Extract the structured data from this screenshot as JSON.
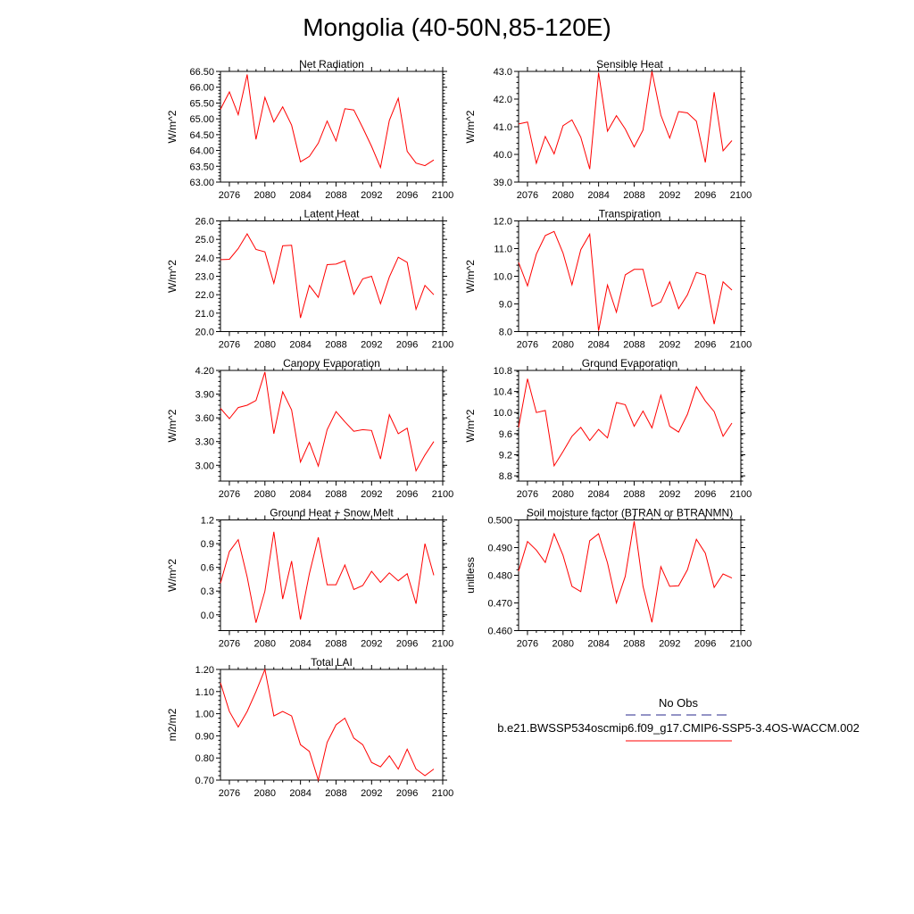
{
  "title": "Mongolia (40-50N,85-120E)",
  "colors": {
    "series": "#ff0000",
    "obs": "#2a2a8c",
    "axis": "#000000"
  },
  "legend": {
    "obs_label": "No Obs",
    "run_label": "b.e21.BWSSP534oscmip6.f09_g17.CMIP6-SSP5-3.4OS-WACCM.002"
  },
  "chart_data": [
    {
      "type": "line",
      "title": "Net Radiation",
      "ylabel": "W/m^2",
      "xlim": [
        2076,
        2100
      ],
      "xticks": [
        2076,
        2080,
        2084,
        2088,
        2092,
        2096,
        2100
      ],
      "ylim": [
        63.0,
        66.5
      ],
      "yticks": [
        "63.00",
        "63.50",
        "64.00",
        "64.50",
        "65.00",
        "65.50",
        "66.00",
        "66.50"
      ],
      "x": [
        2075,
        2076,
        2077,
        2078,
        2079,
        2080,
        2081,
        2082,
        2083,
        2084,
        2085,
        2086,
        2087,
        2088,
        2089,
        2090,
        2091,
        2092,
        2093,
        2094,
        2095,
        2096,
        2097,
        2098,
        2099
      ],
      "values": [
        65.3,
        65.85,
        65.13,
        66.4,
        64.35,
        65.68,
        64.9,
        65.38,
        64.8,
        63.64,
        63.81,
        64.23,
        64.93,
        64.3,
        65.32,
        65.28,
        64.72,
        64.13,
        63.46,
        64.95,
        65.65,
        63.97,
        63.6,
        63.52,
        63.7
      ]
    },
    {
      "type": "line",
      "title": "Sensible Heat",
      "ylabel": "W/m^2",
      "xlim": [
        2076,
        2100
      ],
      "xticks": [
        2076,
        2080,
        2084,
        2088,
        2092,
        2096,
        2100
      ],
      "ylim": [
        39.0,
        43.0
      ],
      "yticks": [
        "39.0",
        "40.0",
        "41.0",
        "42.0",
        "43.0"
      ],
      "x": [
        2075,
        2076,
        2077,
        2078,
        2079,
        2080,
        2081,
        2082,
        2083,
        2084,
        2085,
        2086,
        2087,
        2088,
        2089,
        2090,
        2091,
        2092,
        2093,
        2094,
        2095,
        2096,
        2097,
        2098,
        2099
      ],
      "values": [
        41.1,
        41.17,
        39.68,
        40.65,
        40.02,
        41.04,
        41.25,
        40.62,
        39.47,
        42.95,
        40.84,
        41.4,
        40.92,
        40.27,
        40.88,
        43.0,
        41.42,
        40.59,
        41.55,
        41.5,
        41.2,
        39.71,
        42.25,
        40.13,
        40.5
      ]
    },
    {
      "type": "line",
      "title": "Latent Heat",
      "ylabel": "W/m^2",
      "xlim": [
        2076,
        2100
      ],
      "xticks": [
        2076,
        2080,
        2084,
        2088,
        2092,
        2096,
        2100
      ],
      "ylim": [
        20.0,
        26.0
      ],
      "yticks": [
        "20.0",
        "21.0",
        "22.0",
        "23.0",
        "24.0",
        "25.0",
        "26.0"
      ],
      "x": [
        2075,
        2076,
        2077,
        2078,
        2079,
        2080,
        2081,
        2082,
        2083,
        2084,
        2085,
        2086,
        2087,
        2088,
        2089,
        2090,
        2091,
        2092,
        2093,
        2094,
        2095,
        2096,
        2097,
        2098,
        2099
      ],
      "values": [
        23.9,
        23.92,
        24.5,
        25.3,
        24.45,
        24.32,
        22.62,
        24.65,
        24.68,
        20.74,
        22.5,
        21.86,
        23.63,
        23.66,
        23.84,
        22.02,
        22.86,
        23.0,
        21.51,
        22.96,
        24.03,
        23.75,
        21.21,
        22.5,
        22.0
      ]
    },
    {
      "type": "line",
      "title": "Transpiration",
      "ylabel": "W/m^2",
      "xlim": [
        2076,
        2100
      ],
      "xticks": [
        2076,
        2080,
        2084,
        2088,
        2092,
        2096,
        2100
      ],
      "ylim": [
        8.0,
        12.0
      ],
      "yticks": [
        "8.0",
        "9.0",
        "10.0",
        "11.0",
        "12.0"
      ],
      "x": [
        2075,
        2076,
        2077,
        2078,
        2079,
        2080,
        2081,
        2082,
        2083,
        2084,
        2085,
        2086,
        2087,
        2088,
        2089,
        2090,
        2091,
        2092,
        2093,
        2094,
        2095,
        2096,
        2097,
        2098,
        2099
      ],
      "values": [
        10.5,
        9.65,
        10.8,
        11.47,
        11.62,
        10.84,
        9.69,
        10.96,
        11.52,
        8.03,
        9.68,
        8.7,
        10.05,
        10.25,
        10.25,
        8.91,
        9.07,
        9.8,
        8.83,
        9.33,
        10.14,
        10.04,
        8.27,
        9.8,
        9.5
      ]
    },
    {
      "type": "line",
      "title": "Canopy Evaporation",
      "ylabel": "W/m^2",
      "xlim": [
        2076,
        2100
      ],
      "xticks": [
        2076,
        2080,
        2084,
        2088,
        2092,
        2096,
        2100
      ],
      "ylim": [
        2.8,
        4.2
      ],
      "yticks": [
        "3.00",
        "3.30",
        "3.60",
        "3.90",
        "4.20"
      ],
      "x": [
        2075,
        2076,
        2077,
        2078,
        2079,
        2080,
        2081,
        2082,
        2083,
        2084,
        2085,
        2086,
        2087,
        2088,
        2089,
        2090,
        2091,
        2092,
        2093,
        2094,
        2095,
        2096,
        2097,
        2098,
        2099
      ],
      "values": [
        3.72,
        3.59,
        3.73,
        3.76,
        3.82,
        4.18,
        3.4,
        3.93,
        3.7,
        3.04,
        3.29,
        2.99,
        3.45,
        3.68,
        3.55,
        3.43,
        3.45,
        3.44,
        3.08,
        3.64,
        3.4,
        3.47,
        2.93,
        3.13,
        3.3
      ]
    },
    {
      "type": "line",
      "title": "Ground Evaporation",
      "ylabel": "W/m^2",
      "xlim": [
        2076,
        2100
      ],
      "xticks": [
        2076,
        2080,
        2084,
        2088,
        2092,
        2096,
        2100
      ],
      "ylim": [
        8.7,
        10.8
      ],
      "yticks": [
        "8.8",
        "9.2",
        "9.6",
        "10.0",
        "10.4",
        "10.8"
      ],
      "x": [
        2075,
        2076,
        2077,
        2078,
        2079,
        2080,
        2081,
        2082,
        2083,
        2084,
        2085,
        2086,
        2087,
        2088,
        2089,
        2090,
        2091,
        2092,
        2093,
        2094,
        2095,
        2096,
        2097,
        2098,
        2099
      ],
      "values": [
        9.72,
        10.64,
        10.0,
        10.04,
        8.99,
        9.26,
        9.55,
        9.72,
        9.47,
        9.68,
        9.52,
        10.19,
        10.15,
        9.74,
        10.03,
        9.71,
        10.33,
        9.74,
        9.63,
        9.97,
        10.49,
        10.22,
        10.02,
        9.55,
        9.8
      ]
    },
    {
      "type": "line",
      "title": "Ground Heat + Snow Melt",
      "ylabel": "W/m^2",
      "xlim": [
        2076,
        2100
      ],
      "xticks": [
        2076,
        2080,
        2084,
        2088,
        2092,
        2096,
        2100
      ],
      "ylim": [
        -0.2,
        1.2
      ],
      "yticks": [
        "0.0",
        "0.3",
        "0.6",
        "0.9",
        "1.2"
      ],
      "x": [
        2075,
        2076,
        2077,
        2078,
        2079,
        2080,
        2081,
        2082,
        2083,
        2084,
        2085,
        2086,
        2087,
        2088,
        2089,
        2090,
        2091,
        2092,
        2093,
        2094,
        2095,
        2096,
        2097,
        2098,
        2099
      ],
      "values": [
        0.4,
        0.8,
        0.95,
        0.48,
        -0.1,
        0.3,
        1.05,
        0.2,
        0.68,
        -0.06,
        0.52,
        0.98,
        0.38,
        0.38,
        0.63,
        0.32,
        0.37,
        0.55,
        0.41,
        0.53,
        0.43,
        0.52,
        0.14,
        0.9,
        0.5
      ]
    },
    {
      "type": "line",
      "title": "Soil moisture factor (BTRAN or BTRANMN)",
      "ylabel": "unitless",
      "xlim": [
        2076,
        2100
      ],
      "xticks": [
        2076,
        2080,
        2084,
        2088,
        2092,
        2096,
        2100
      ],
      "ylim": [
        0.46,
        0.5
      ],
      "yticks": [
        "0.460",
        "0.470",
        "0.480",
        "0.490",
        "0.500"
      ],
      "x": [
        2075,
        2076,
        2077,
        2078,
        2079,
        2080,
        2081,
        2082,
        2083,
        2084,
        2085,
        2086,
        2087,
        2088,
        2089,
        2090,
        2091,
        2092,
        2093,
        2094,
        2095,
        2096,
        2097,
        2098,
        2099
      ],
      "values": [
        0.4815,
        0.4922,
        0.4891,
        0.4846,
        0.495,
        0.4872,
        0.476,
        0.4741,
        0.4925,
        0.495,
        0.4845,
        0.47,
        0.4796,
        0.4995,
        0.476,
        0.463,
        0.4831,
        0.476,
        0.4762,
        0.482,
        0.493,
        0.488,
        0.4756,
        0.4805,
        0.479
      ]
    },
    {
      "type": "line",
      "title": "Total LAI",
      "ylabel": "m2/m2",
      "xlim": [
        2076,
        2100
      ],
      "xticks": [
        2076,
        2080,
        2084,
        2088,
        2092,
        2096,
        2100
      ],
      "ylim": [
        0.7,
        1.2
      ],
      "yticks": [
        "0.70",
        "0.80",
        "0.90",
        "1.00",
        "1.10",
        "1.20"
      ],
      "x": [
        2075,
        2076,
        2077,
        2078,
        2079,
        2080,
        2081,
        2082,
        2083,
        2084,
        2085,
        2086,
        2087,
        2088,
        2089,
        2090,
        2091,
        2092,
        2093,
        2094,
        2095,
        2096,
        2097,
        2098,
        2099
      ],
      "values": [
        1.14,
        1.01,
        0.94,
        1.01,
        1.1,
        1.2,
        0.99,
        1.01,
        0.99,
        0.86,
        0.83,
        0.7,
        0.87,
        0.95,
        0.98,
        0.89,
        0.86,
        0.78,
        0.76,
        0.81,
        0.75,
        0.84,
        0.75,
        0.72,
        0.75
      ]
    }
  ]
}
